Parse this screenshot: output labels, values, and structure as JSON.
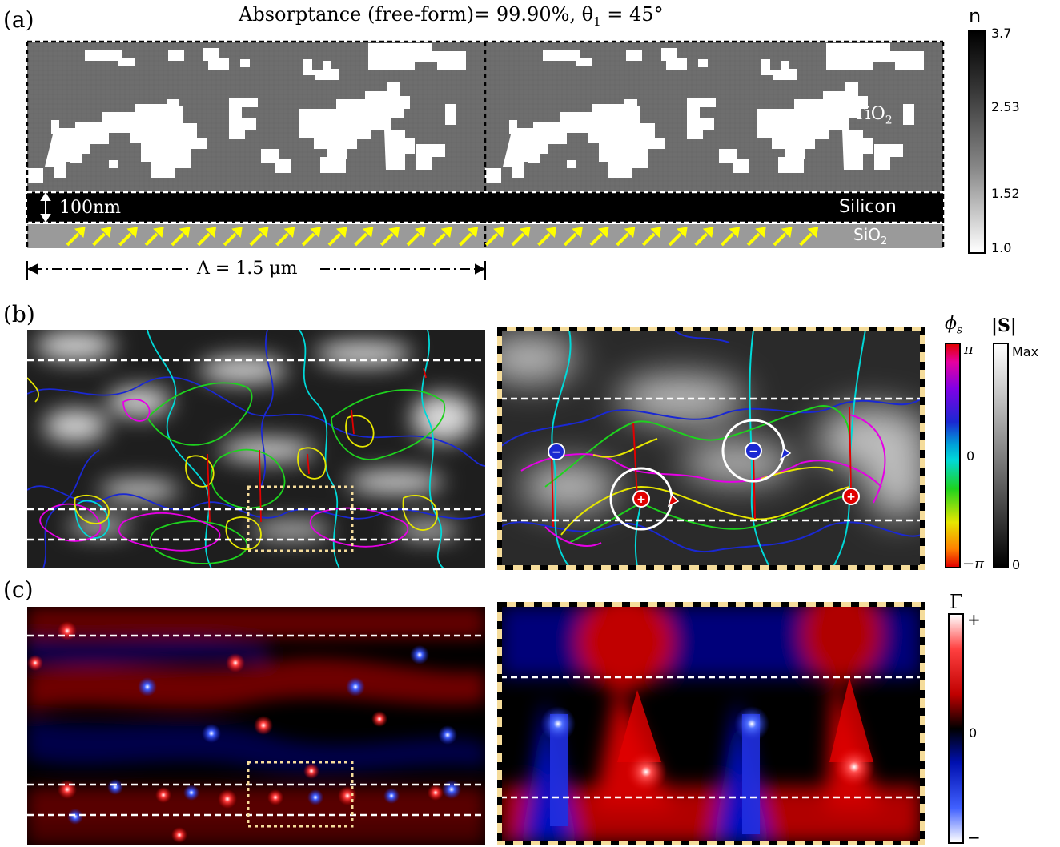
{
  "panels": {
    "a": {
      "label": "(a)"
    },
    "b": {
      "label": "(b)"
    },
    "c": {
      "label": "(c)"
    }
  },
  "panel_a": {
    "title": "Absorptance (free-form)= 99.90%,   θ",
    "title_sub": "1",
    "title_tail": " = 45°",
    "tio2": "TiO",
    "tio2_sub": "2",
    "silicon": "Silicon",
    "sio2": "SiO",
    "sio2_sub": "2",
    "thickness": "100nm",
    "period": "Λ = 1.5 μm",
    "colorbar": {
      "title": "n",
      "ticks": [
        "3.7",
        "2.53",
        "1.52",
        "1.0"
      ]
    }
  },
  "panel_b": {
    "phase_colorbar": {
      "title": "ϕ",
      "title_sub": "s",
      "ticks": [
        "π",
        "0",
        "−π"
      ]
    },
    "magnitude_colorbar": {
      "title": "|S|",
      "ticks": [
        "Max",
        "0"
      ]
    },
    "vortex_minus": "−",
    "vortex_plus": "+"
  },
  "panel_c": {
    "colorbar": {
      "title": "Γ",
      "ticks": [
        "+",
        "0",
        "−"
      ]
    }
  },
  "colors": {
    "tio2_gray": "#6e6e6e",
    "silicon": "#000000",
    "sio2_gray": "#9a9a9a",
    "arrow_yellow": "#ffff00",
    "frame_beige": "#f5dc9b",
    "red": "#e10000",
    "blue": "#1a28d2"
  }
}
